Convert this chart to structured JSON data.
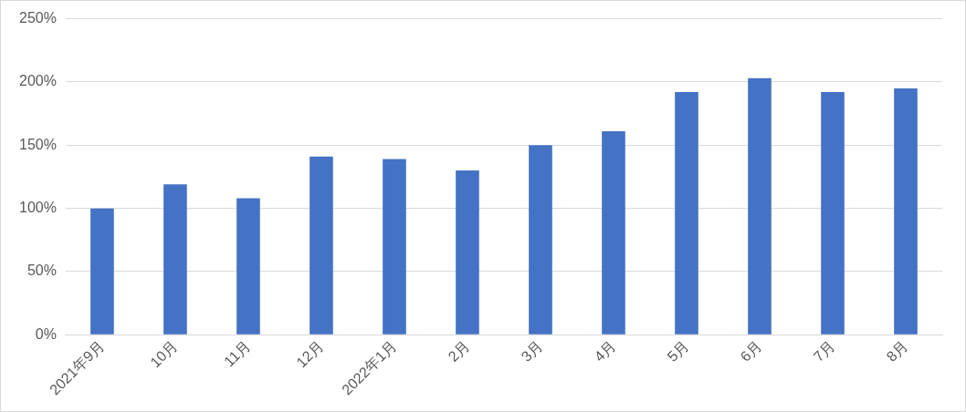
{
  "chart_data": {
    "type": "bar",
    "categories": [
      "2021年9月",
      "10月",
      "11月",
      "12月",
      "2022年1月",
      "2月",
      "3月",
      "4月",
      "5月",
      "6月",
      "7月",
      "8月"
    ],
    "values": [
      100,
      119,
      108,
      141,
      139,
      130,
      150,
      161,
      192,
      203,
      192,
      195
    ],
    "color": "#4472c4",
    "ylim": [
      0,
      250
    ],
    "yticks": [
      {
        "value": 0,
        "label": "0%"
      },
      {
        "value": 50,
        "label": "50%"
      },
      {
        "value": 100,
        "label": "100%"
      },
      {
        "value": 150,
        "label": "150%"
      },
      {
        "value": 200,
        "label": "200%"
      },
      {
        "value": 250,
        "label": "250%"
      }
    ],
    "grid": "y",
    "legend": false
  }
}
